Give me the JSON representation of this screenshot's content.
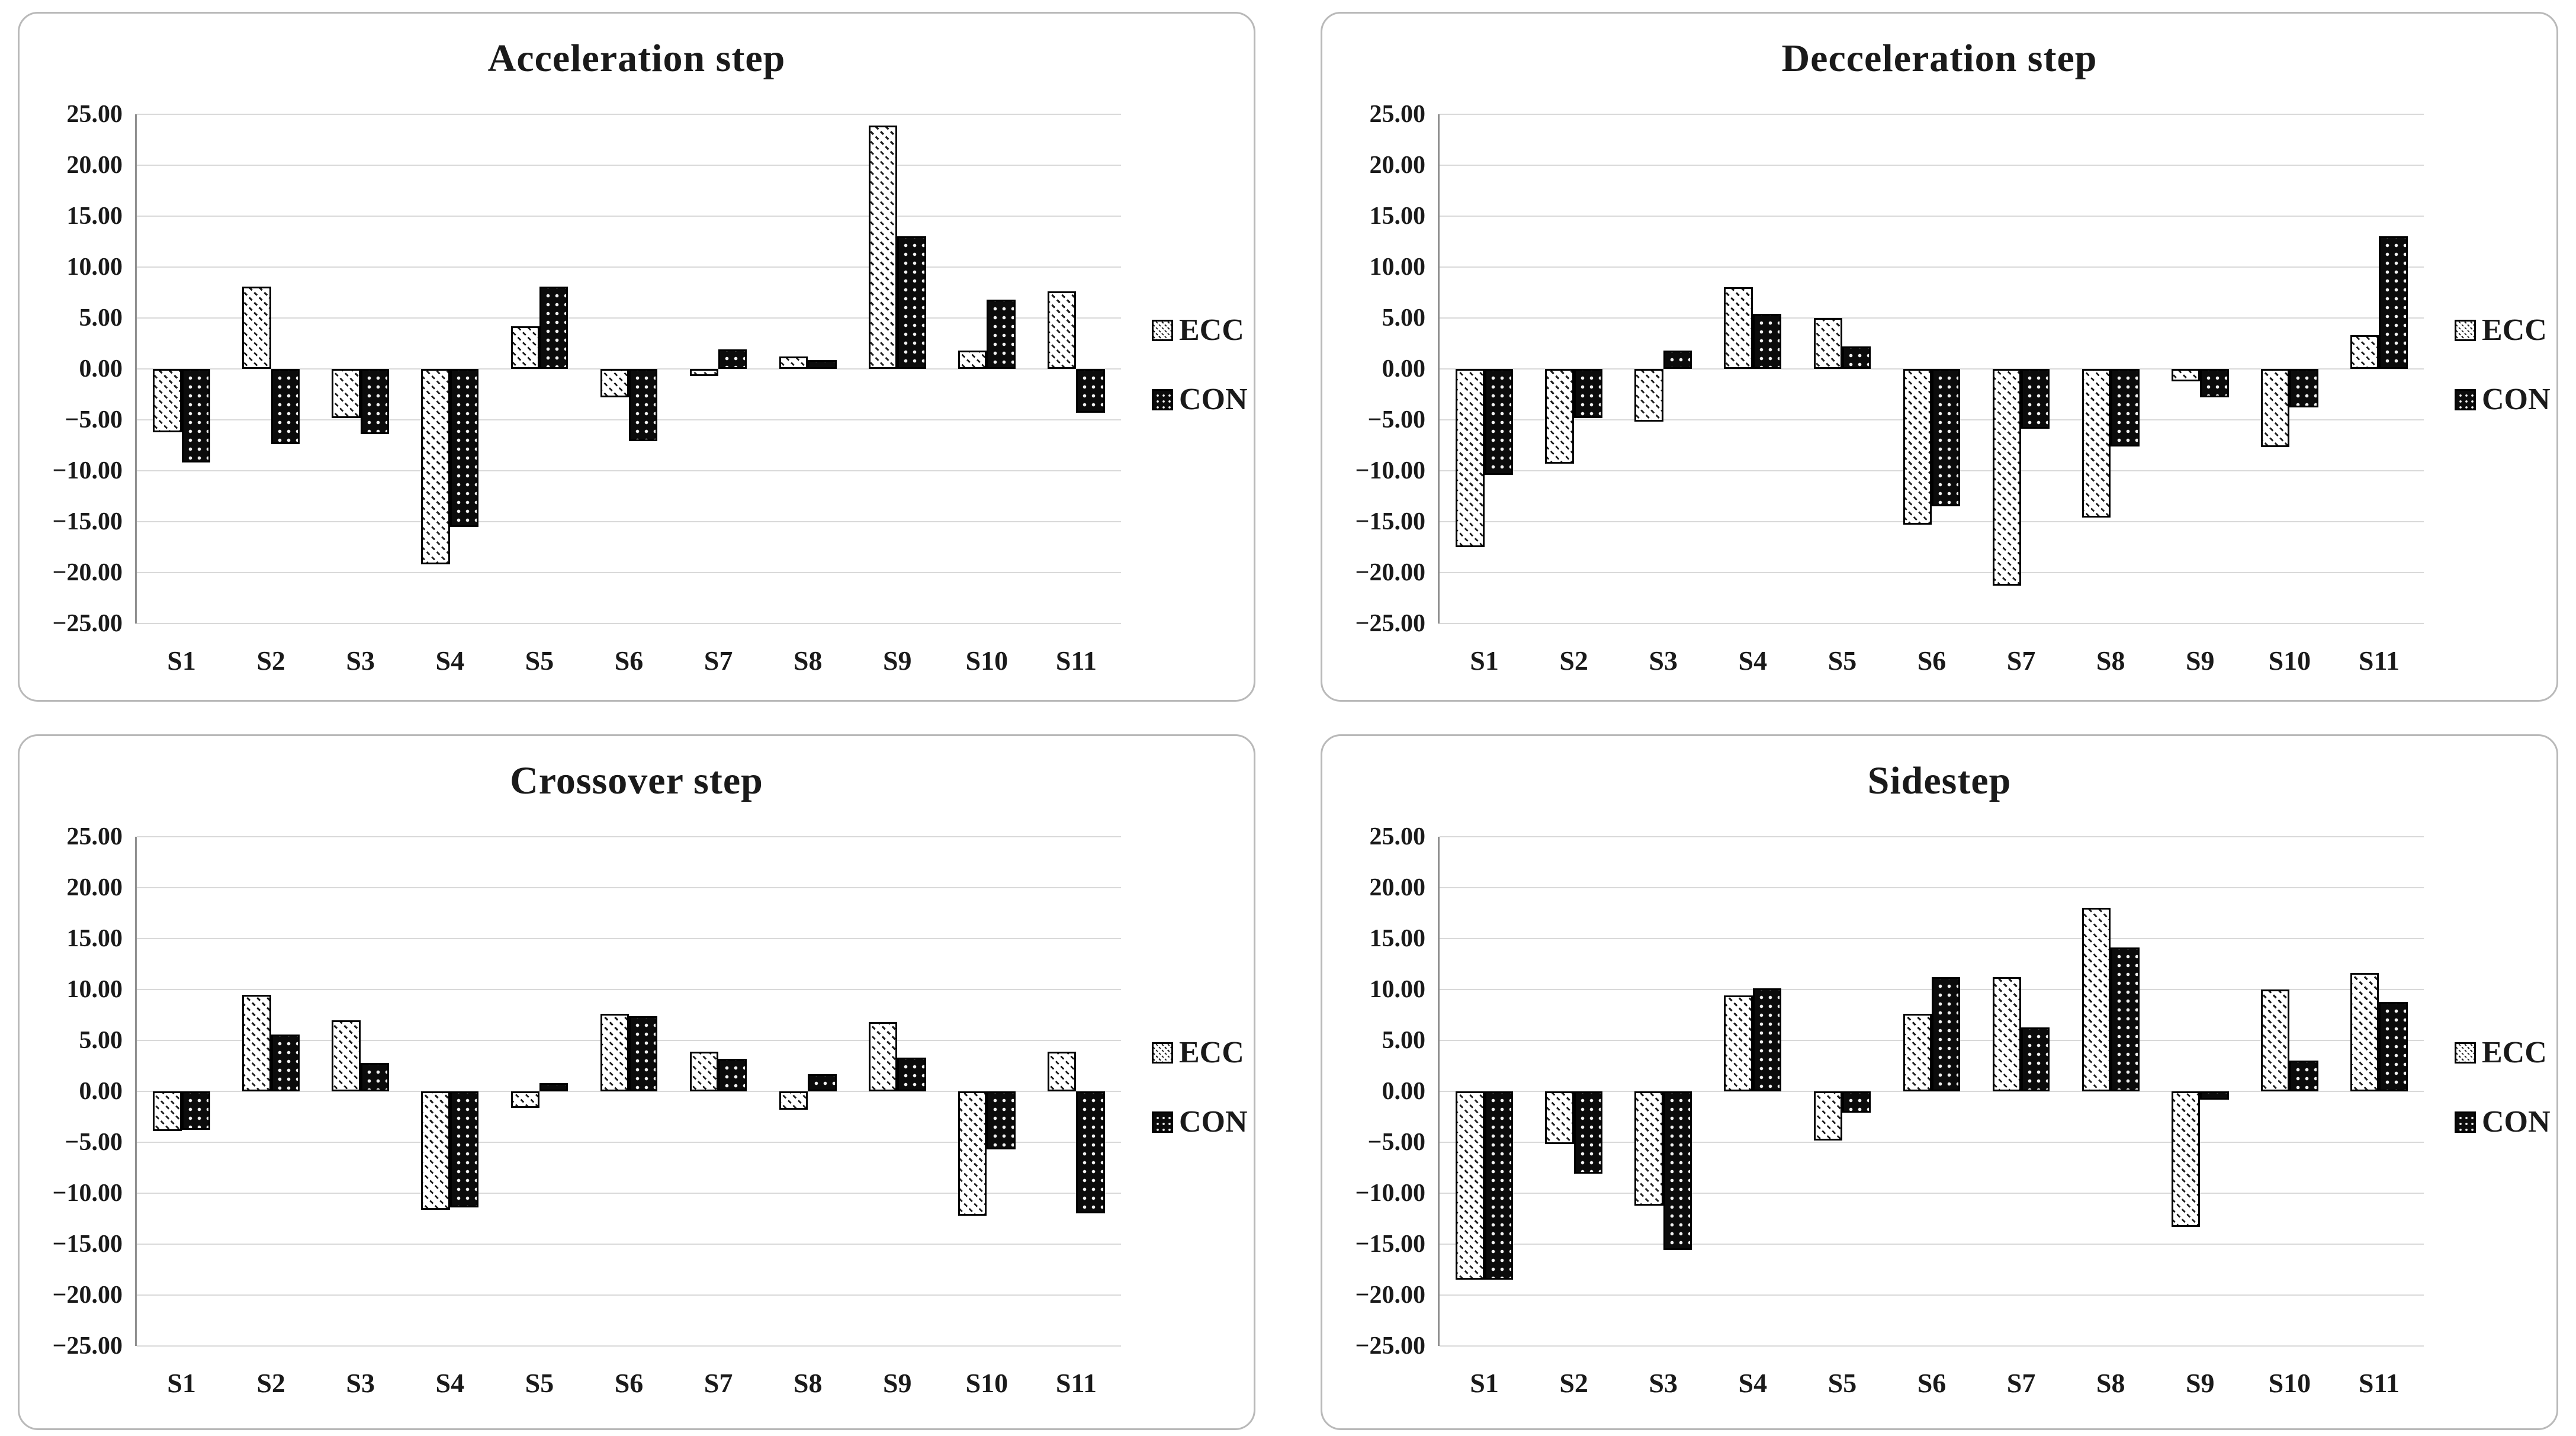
{
  "figure": {
    "type": "2x2-bar-chart-grid",
    "background": "#ffffff",
    "panel_border_color": "#b9b9b9",
    "gridline_color": "#d9d9d9",
    "axis_line_color": "#8f8f8f",
    "text_color": "#1a1a1a",
    "ecc_pattern": "white-diagonal-hatch",
    "con_pattern": "black-white-dots"
  },
  "axis": {
    "ymin": -25,
    "ymax": 25,
    "ytick_step": 5,
    "ytick_labels": [
      "25.00",
      "20.00",
      "15.00",
      "10.00",
      "5.00",
      "0.00",
      "−5.00",
      "−10.00",
      "−15.00",
      "−20.00",
      "−25.00"
    ]
  },
  "chart_data": [
    {
      "type": "bar",
      "title": "Acceleration step",
      "categories": [
        "S1",
        "S2",
        "S3",
        "S4",
        "S5",
        "S6",
        "S7",
        "S8",
        "S9",
        "S10",
        "S11"
      ],
      "series": [
        {
          "name": "ECC",
          "values": [
            -6.2,
            8.1,
            -4.8,
            -19.2,
            4.2,
            -2.8,
            -0.7,
            1.2,
            23.9,
            1.8,
            7.6
          ]
        },
        {
          "name": "CON",
          "values": [
            -9.2,
            -7.4,
            -6.4,
            -15.5,
            8.1,
            -7.1,
            1.9,
            0.9,
            13.0,
            6.8,
            -4.3
          ]
        }
      ],
      "ylim": [
        -25,
        25
      ],
      "grid": true,
      "legend": [
        "ECC",
        "CON"
      ],
      "legend_position": "right"
    },
    {
      "type": "bar",
      "title": "Decceleration step",
      "categories": [
        "S1",
        "S2",
        "S3",
        "S4",
        "S5",
        "S6",
        "S7",
        "S8",
        "S9",
        "S10",
        "S11"
      ],
      "series": [
        {
          "name": "ECC",
          "values": [
            -17.5,
            -9.3,
            -5.2,
            8.0,
            5.0,
            -15.3,
            -21.3,
            -14.6,
            -1.2,
            -7.7,
            3.3
          ]
        },
        {
          "name": "CON",
          "values": [
            -10.4,
            -4.8,
            1.8,
            5.4,
            2.2,
            -13.5,
            -5.9,
            -7.6,
            -2.8,
            -3.8,
            13.0
          ]
        }
      ],
      "ylim": [
        -25,
        25
      ],
      "grid": true,
      "legend": [
        "ECC",
        "CON"
      ],
      "legend_position": "right"
    },
    {
      "type": "bar",
      "title": "Crossover step",
      "categories": [
        "S1",
        "S2",
        "S3",
        "S4",
        "S5",
        "S6",
        "S7",
        "S8",
        "S9",
        "S10",
        "S11"
      ],
      "series": [
        {
          "name": "ECC",
          "values": [
            -3.9,
            9.5,
            7.0,
            -11.6,
            -1.6,
            7.6,
            3.9,
            -1.8,
            6.8,
            -12.2,
            3.9
          ]
        },
        {
          "name": "CON",
          "values": [
            -3.8,
            5.6,
            2.8,
            -11.4,
            0.8,
            7.4,
            3.2,
            1.7,
            3.3,
            -5.7,
            -12.0
          ]
        }
      ],
      "ylim": [
        -25,
        25
      ],
      "grid": true,
      "legend": [
        "ECC",
        "CON"
      ],
      "legend_position": "right"
    },
    {
      "type": "bar",
      "title": "Sidestep",
      "categories": [
        "S1",
        "S2",
        "S3",
        "S4",
        "S5",
        "S6",
        "S7",
        "S8",
        "S9",
        "S10",
        "S11"
      ],
      "series": [
        {
          "name": "ECC",
          "values": [
            -18.5,
            -5.2,
            -11.2,
            9.4,
            -4.8,
            7.6,
            11.2,
            18.0,
            -13.3,
            10.0,
            11.6
          ]
        },
        {
          "name": "CON",
          "values": [
            -18.5,
            -8.1,
            -15.6,
            10.1,
            -2.1,
            11.2,
            6.3,
            14.1,
            -0.8,
            3.0,
            8.8
          ]
        }
      ],
      "ylim": [
        -25,
        25
      ],
      "grid": true,
      "legend": [
        "ECC",
        "CON"
      ],
      "legend_position": "right"
    }
  ]
}
